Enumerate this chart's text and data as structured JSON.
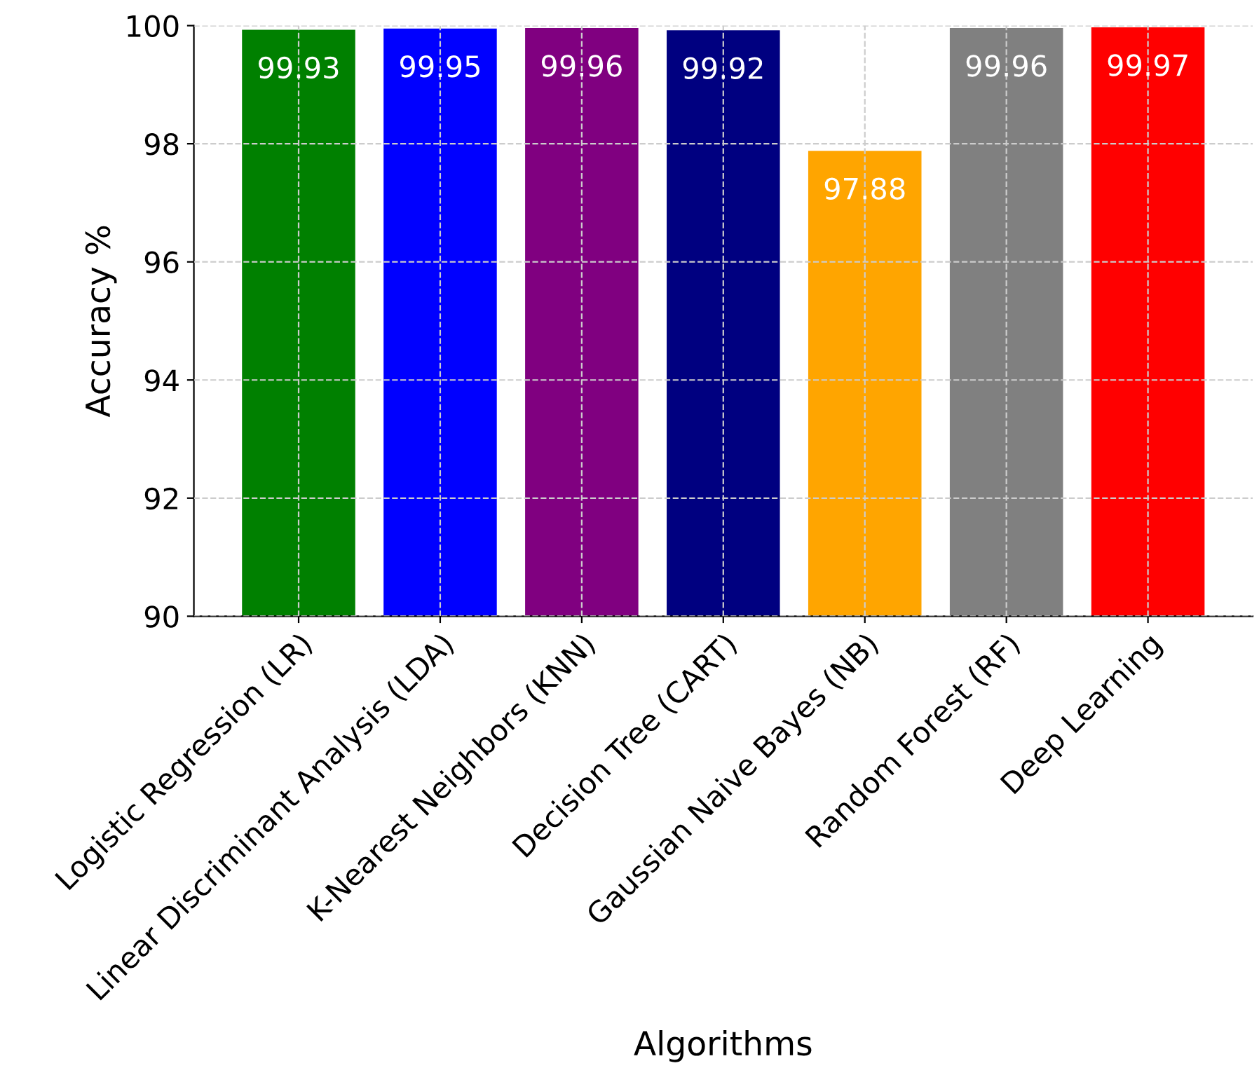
{
  "chart_data": {
    "type": "bar",
    "xlabel": "Algorithms",
    "ylabel": "Accuracy %",
    "categories": [
      "Logistic Regression (LR)",
      "Linear Discriminant Analysis (LDA)",
      "K-Nearest Neighbors (KNN)",
      "Decision Tree (CART)",
      "Gaussian Naive Bayes (NB)",
      "Random Forest (RF)",
      "Deep Learning"
    ],
    "values": [
      99.93,
      99.95,
      99.96,
      99.92,
      97.88,
      99.96,
      99.97
    ],
    "colors": [
      "#008000",
      "#0000ff",
      "#800080",
      "#000080",
      "#ffa500",
      "#808080",
      "#ff0000"
    ],
    "ylim": [
      90,
      100
    ],
    "yticks": [
      90,
      92,
      94,
      96,
      98,
      100
    ],
    "grid": true,
    "data_labels": true
  }
}
